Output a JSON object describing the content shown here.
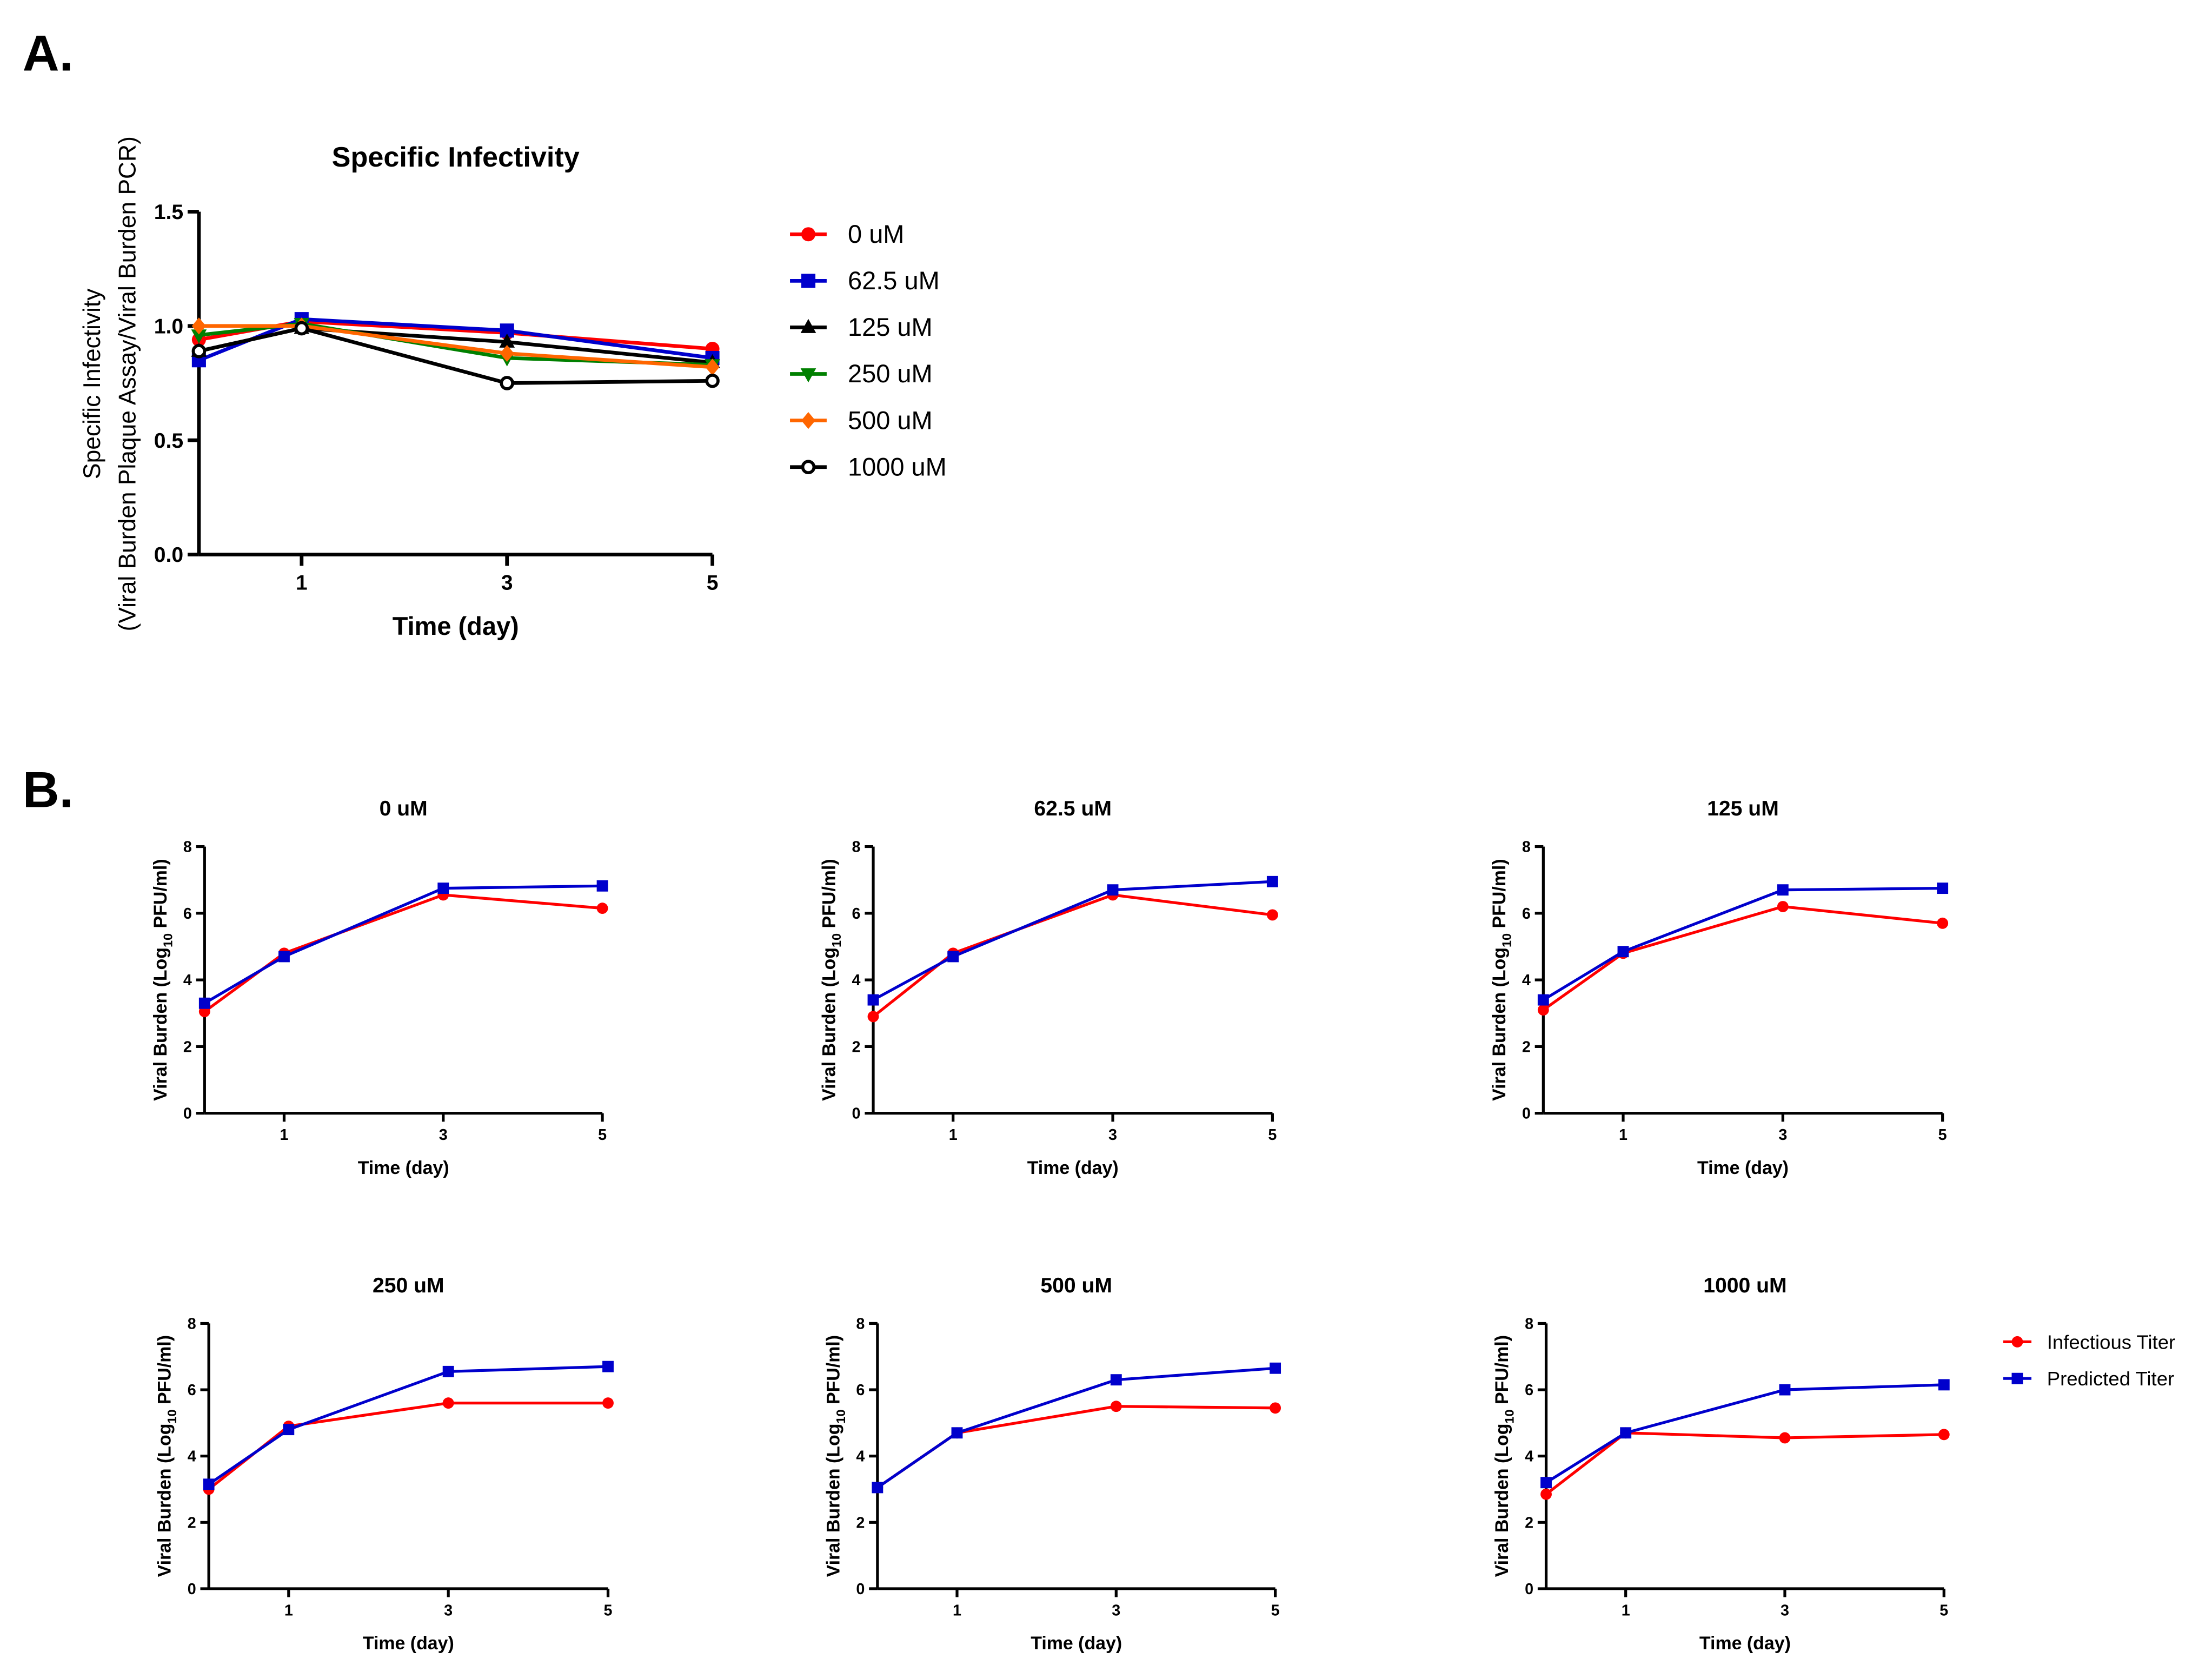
{
  "panel_labels": [
    "A.",
    "B."
  ],
  "colors": {
    "0 uM": "#ff0000",
    "62.5 uM": "#0000cc",
    "125 uM": "#000000",
    "250 uM": "#008000",
    "500 uM": "#ff6600",
    "1000 uM": "#000000",
    "infectious": "#ff0000",
    "predicted": "#0000cc"
  },
  "chart_data": [
    {
      "type": "line",
      "title": "Specific Infectivity",
      "xlabel": "Time (day)",
      "ylabel": [
        "Specific Infectivity",
        "(Viral Burden Plaque Assay/Viral Burden PCR)"
      ],
      "x": [
        0,
        1,
        3,
        5
      ],
      "xticks": [
        "1",
        "3",
        "5"
      ],
      "xtick_values": [
        1,
        3,
        5
      ],
      "xlim": [
        0,
        5
      ],
      "ylim": [
        0,
        1.5
      ],
      "yticks": [
        "0.0",
        "0.5",
        "1.0",
        "1.5"
      ],
      "legend_position": "right",
      "series": [
        {
          "name": "0 uM",
          "marker": "circle",
          "values": [
            0.94,
            1.02,
            0.97,
            0.9
          ]
        },
        {
          "name": "62.5 uM",
          "marker": "square",
          "values": [
            0.85,
            1.03,
            0.98,
            0.86
          ]
        },
        {
          "name": "125 uM",
          "marker": "triangle-up",
          "values": [
            0.89,
            0.99,
            0.93,
            0.84
          ]
        },
        {
          "name": "250 uM",
          "marker": "triangle-down",
          "values": [
            0.96,
            1.01,
            0.86,
            0.83
          ]
        },
        {
          "name": "500 uM",
          "marker": "diamond",
          "values": [
            1.0,
            1.0,
            0.88,
            0.82
          ]
        },
        {
          "name": "1000 uM",
          "marker": "open-circle",
          "values": [
            0.89,
            0.99,
            0.75,
            0.76
          ]
        }
      ]
    },
    {
      "type": "line",
      "title": "0 uM",
      "xlabel": "Time (day)",
      "ylabel": "Viral Burden (Log10 PFU/ml)",
      "x": [
        0,
        1,
        3,
        5
      ],
      "xlim": [
        0,
        5
      ],
      "ylim": [
        0,
        8
      ],
      "yticks": [
        "0",
        "2",
        "4",
        "6",
        "8"
      ],
      "xticks": [
        "1",
        "3",
        "5"
      ],
      "series": [
        {
          "name": "Infectious Titer",
          "values": [
            3.05,
            4.8,
            6.55,
            6.15
          ]
        },
        {
          "name": "Predicted Titer",
          "values": [
            3.3,
            4.7,
            6.75,
            6.82
          ]
        }
      ]
    },
    {
      "type": "line",
      "title": "62.5 uM",
      "xlabel": "Time (day)",
      "ylabel": "Viral Burden (Log10 PFU/ml)",
      "x": [
        0,
        1,
        3,
        5
      ],
      "xlim": [
        0,
        5
      ],
      "ylim": [
        0,
        8
      ],
      "yticks": [
        "0",
        "2",
        "4",
        "6",
        "8"
      ],
      "xticks": [
        "1",
        "3",
        "5"
      ],
      "series": [
        {
          "name": "Infectious Titer",
          "values": [
            2.9,
            4.8,
            6.55,
            5.95
          ]
        },
        {
          "name": "Predicted Titer",
          "values": [
            3.4,
            4.7,
            6.7,
            6.95
          ]
        }
      ]
    },
    {
      "type": "line",
      "title": "125 uM",
      "xlabel": "Time (day)",
      "ylabel": "Viral Burden (Log10 PFU/ml)",
      "x": [
        0,
        1,
        3,
        5
      ],
      "xlim": [
        0,
        5
      ],
      "ylim": [
        0,
        8
      ],
      "yticks": [
        "0",
        "2",
        "4",
        "6",
        "8"
      ],
      "xticks": [
        "1",
        "3",
        "5"
      ],
      "series": [
        {
          "name": "Infectious Titer",
          "values": [
            3.1,
            4.8,
            6.2,
            5.7
          ]
        },
        {
          "name": "Predicted Titer",
          "values": [
            3.4,
            4.85,
            6.7,
            6.75
          ]
        }
      ]
    },
    {
      "type": "line",
      "title": "250 uM",
      "xlabel": "Time (day)",
      "ylabel": "Viral Burden (Log10 PFU/ml)",
      "x": [
        0,
        1,
        3,
        5
      ],
      "xlim": [
        0,
        5
      ],
      "ylim": [
        0,
        8
      ],
      "yticks": [
        "0",
        "2",
        "4",
        "6",
        "8"
      ],
      "xticks": [
        "1",
        "3",
        "5"
      ],
      "series": [
        {
          "name": "Infectious Titer",
          "values": [
            3.0,
            4.9,
            5.6,
            5.6
          ]
        },
        {
          "name": "Predicted Titer",
          "values": [
            3.15,
            4.8,
            6.55,
            6.7
          ]
        }
      ]
    },
    {
      "type": "line",
      "title": "500 uM",
      "xlabel": "Time (day)",
      "ylabel": "Viral Burden (Log10 PFU/ml)",
      "x": [
        0,
        1,
        3,
        5
      ],
      "xlim": [
        0,
        5
      ],
      "ylim": [
        0,
        8
      ],
      "yticks": [
        "0",
        "2",
        "4",
        "6",
        "8"
      ],
      "xticks": [
        "1",
        "3",
        "5"
      ],
      "series": [
        {
          "name": "Infectious Titer",
          "values": [
            3.05,
            4.7,
            5.5,
            5.45
          ]
        },
        {
          "name": "Predicted Titer",
          "values": [
            3.05,
            4.7,
            6.3,
            6.65
          ]
        }
      ]
    },
    {
      "type": "line",
      "title": "1000 uM",
      "xlabel": "Time (day)",
      "ylabel": "Viral Burden (Log10 PFU/ml)",
      "x": [
        0,
        1,
        3,
        5
      ],
      "xlim": [
        0,
        5
      ],
      "ylim": [
        0,
        8
      ],
      "yticks": [
        "0",
        "2",
        "4",
        "6",
        "8"
      ],
      "xticks": [
        "1",
        "3",
        "5"
      ],
      "series": [
        {
          "name": "Infectious Titer",
          "values": [
            2.85,
            4.7,
            4.55,
            4.65
          ]
        },
        {
          "name": "Predicted Titer",
          "values": [
            3.2,
            4.7,
            6.0,
            6.15
          ]
        }
      ]
    }
  ],
  "legend_b": [
    "Infectious Titer",
    "Predicted Titer"
  ]
}
